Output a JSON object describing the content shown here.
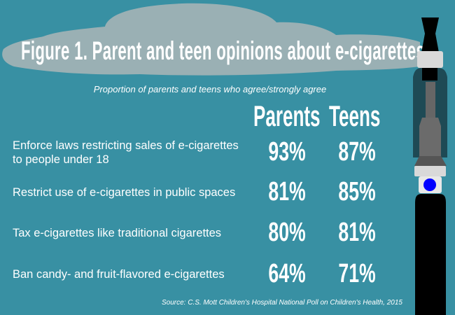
{
  "title": "Figure 1. Parent and teen opinions about e-cigarettes",
  "chart_data": {
    "type": "table",
    "title": "Figure 1. Parent and teen opinions about e-cigarettes",
    "subtitle": "Proportion of parents and teens who agree/strongly agree",
    "columns": [
      "Parents",
      "Teens"
    ],
    "rows": [
      {
        "label": "Enforce laws restricting sales of e-cigarettes to people under 18",
        "label_line1": "Enforce laws restricting sales of e-cigarettes",
        "label_line2": "to people under 18",
        "parents": "93%",
        "teens": "87%"
      },
      {
        "label": "Restrict use of e-cigarettes in public spaces",
        "parents": "81%",
        "teens": "85%"
      },
      {
        "label": "Tax e-cigarettes like traditional cigarettes",
        "parents": "80%",
        "teens": "81%"
      },
      {
        "label": "Ban candy- and fruit-flavored e-cigarettes",
        "parents": "64%",
        "teens": "71%"
      }
    ],
    "source": "Source: C.S. Mott Children's Hospital National Poll on Children's Health, 2015"
  },
  "colors": {
    "background": "#3890a3",
    "cloud": "#9ab0b4",
    "button_light": "#0000ff"
  }
}
